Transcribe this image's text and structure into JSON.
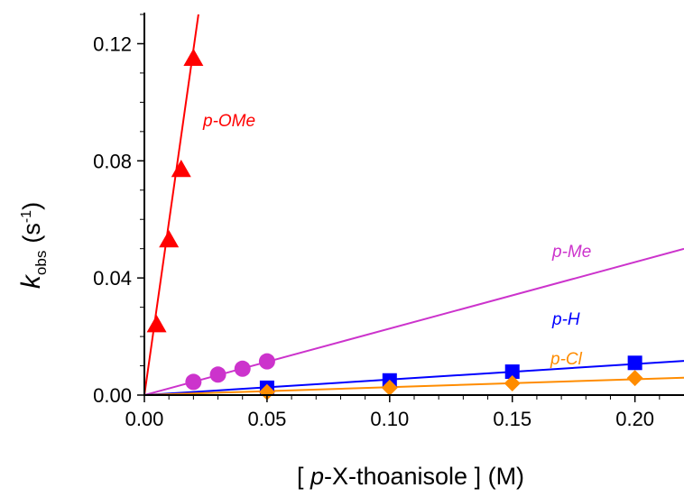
{
  "chart_data": {
    "type": "scatter",
    "ylabel_main": "k",
    "ylabel_sub": "obs",
    "ylabel_unit_open": "(s",
    "ylabel_unit_sup": "-1",
    "ylabel_unit_close": ")",
    "xlabel_prefix": "[ ",
    "xlabel_italic": "p",
    "xlabel_rest": "-X-thoanisole ] (M)",
    "xlim": [
      0,
      0.22
    ],
    "ylim": [
      0,
      0.13
    ],
    "xticks": [
      "0.00",
      "0.05",
      "0.10",
      "0.15",
      "0.20"
    ],
    "yticks": [
      "0.00",
      "0.04",
      "0.08",
      "0.12"
    ],
    "series": [
      {
        "name": "p-OMe",
        "color": "#ff0000",
        "marker": "triangle",
        "x": [
          0.005,
          0.01,
          0.015,
          0.02
        ],
        "y": [
          0.024,
          0.053,
          0.077,
          0.115
        ],
        "fit_slope": 5.9
      },
      {
        "name": "p-Me",
        "color": "#cc33cc",
        "marker": "circle",
        "x": [
          0.02,
          0.03,
          0.04,
          0.05
        ],
        "y": [
          0.0045,
          0.007,
          0.009,
          0.0115
        ],
        "fit_slope": 0.227
      },
      {
        "name": "p-H",
        "color": "#0000ff",
        "marker": "square",
        "x": [
          0.05,
          0.1,
          0.15,
          0.2
        ],
        "y": [
          0.0025,
          0.005,
          0.008,
          0.011
        ],
        "fit_slope": 0.053
      },
      {
        "name": "p-Cl",
        "color": "#ff8c00",
        "marker": "diamond",
        "x": [
          0.05,
          0.1,
          0.15,
          0.2
        ],
        "y": [
          0.001,
          0.0025,
          0.004,
          0.0058
        ],
        "fit_slope": 0.027
      }
    ]
  }
}
